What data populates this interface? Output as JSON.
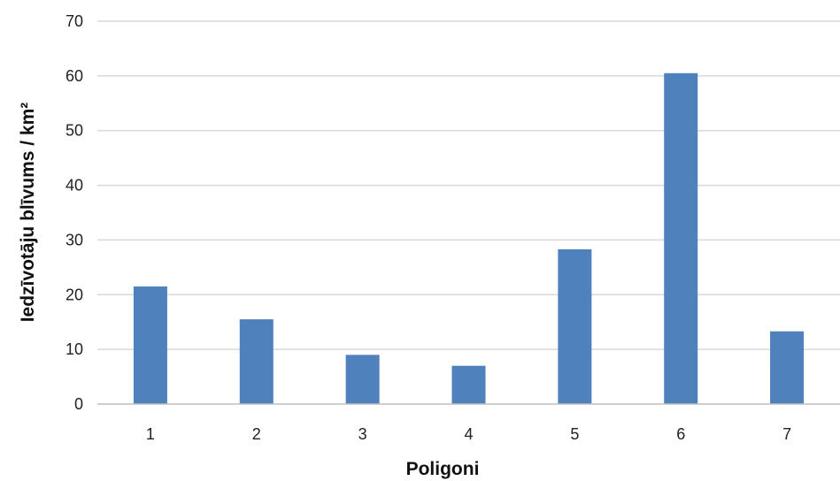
{
  "chart_data": {
    "type": "bar",
    "categories": [
      "1",
      "2",
      "3",
      "4",
      "5",
      "6",
      "7"
    ],
    "values": [
      21.5,
      15.5,
      9,
      7,
      28.3,
      60.5,
      13.3
    ],
    "xlabel": "Poligoni",
    "ylabel": "Iedzīvotāju blīvums / km²",
    "ylim": [
      0,
      70
    ],
    "yticks": [
      "0",
      "10",
      "20",
      "30",
      "40",
      "50",
      "60",
      "70"
    ],
    "grid": true,
    "legend": "none",
    "bar_color": "#4F81BD",
    "grid_color": "#D9D9D9"
  }
}
